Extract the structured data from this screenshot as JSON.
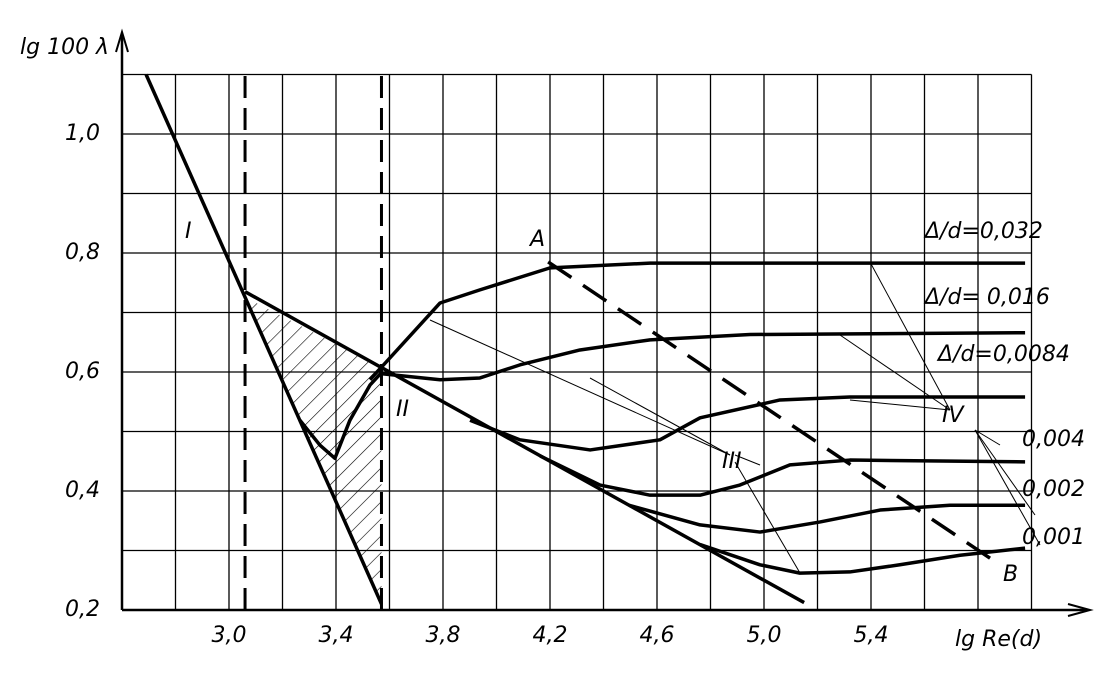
{
  "chart_data": {
    "type": "line",
    "y_label": "lg 100 λ",
    "x_label": "lg Re(d)",
    "xlim": [
      2.6,
      6.2
    ],
    "ylim": [
      0.2,
      1.1
    ],
    "xticks": [
      {
        "value": 3.0,
        "label": "3,0"
      },
      {
        "value": 3.4,
        "label": "3,4"
      },
      {
        "value": 3.8,
        "label": "3,8"
      },
      {
        "value": 4.2,
        "label": "4,2"
      },
      {
        "value": 4.6,
        "label": "4,6"
      },
      {
        "value": 5.0,
        "label": "5,0"
      },
      {
        "value": 5.4,
        "label": "5,4"
      }
    ],
    "yticks": [
      {
        "value": 0.2,
        "label": "0,2"
      },
      {
        "value": 0.4,
        "label": "0,4"
      },
      {
        "value": 0.6,
        "label": "0,6"
      },
      {
        "value": 0.8,
        "label": "0,8"
      },
      {
        "value": 1.0,
        "label": "1,0"
      }
    ],
    "xgrid": [
      2.8,
      3.0,
      3.2,
      3.4,
      3.6,
      3.8,
      4.0,
      4.2,
      4.4,
      4.6,
      4.8,
      5.0,
      5.2,
      5.4,
      5.6,
      5.8,
      6.0
    ],
    "ygrid": [
      0.3,
      0.4,
      0.5,
      0.6,
      0.7,
      0.8,
      0.9,
      1.0,
      1.1
    ],
    "grid": true,
    "vlines": [
      3.06,
      3.57
    ],
    "series": [
      {
        "name": "I",
        "color": "#000000",
        "x": [
          2.69,
          3.57
        ],
        "values": [
          1.1,
          0.21
        ]
      },
      {
        "name": "II",
        "color": "#000000",
        "x": [
          3.06,
          5.15
        ],
        "values": [
          0.735,
          0.2125
        ]
      },
      {
        "color": "#000000",
        "x": [
          3.265,
          3.34,
          3.396,
          3.452,
          3.527,
          3.572
        ],
        "values": [
          0.519,
          0.477,
          0.455,
          0.519,
          0.578,
          0.6
        ]
      },
      {
        "name": "Δ/d=0,032",
        "color": "#000000",
        "x": [
          3.527,
          3.789,
          3.938,
          4.2,
          4.574,
          5.976
        ],
        "values": [
          0.587,
          0.716,
          0.738,
          0.775,
          0.783,
          0.783
        ]
      },
      {
        "name": "Δ/d= 0,016",
        "color": "#000000",
        "x": [
          3.572,
          3.789,
          3.938,
          4.088,
          4.312,
          4.574,
          4.948,
          5.976
        ],
        "values": [
          0.597,
          0.587,
          0.59,
          0.612,
          0.637,
          0.654,
          0.663,
          0.666
        ]
      },
      {
        "name": "Δ/d=0,0084",
        "color": "#000000",
        "x": [
          3.901,
          4.088,
          4.35,
          4.611,
          4.761,
          5.06,
          5.321,
          5.976
        ],
        "values": [
          0.519,
          0.486,
          0.469,
          0.486,
          0.523,
          0.553,
          0.558,
          0.558
        ]
      },
      {
        "name": "0,004",
        "color": "#000000",
        "x": [
          4.163,
          4.387,
          4.574,
          4.761,
          4.91,
          5.097,
          5.321,
          5.976
        ],
        "values": [
          0.459,
          0.41,
          0.393,
          0.393,
          0.41,
          0.444,
          0.452,
          0.449
        ]
      },
      {
        "name": "0,002",
        "color": "#000000",
        "x": [
          4.496,
          4.761,
          4.985,
          5.21,
          5.434,
          5.695,
          5.976
        ],
        "values": [
          0.376,
          0.343,
          0.331,
          0.348,
          0.368,
          0.376,
          0.376
        ]
      },
      {
        "name": "0,001",
        "color": "#000000",
        "x": [
          4.761,
          4.985,
          5.134,
          5.321,
          5.508,
          5.733,
          5.976
        ],
        "values": [
          0.31,
          0.276,
          0.262,
          0.264,
          0.276,
          0.292,
          0.304
        ]
      },
      {
        "color": "#000000",
        "dash": true,
        "x": [
          4.193,
          5.882
        ],
        "values": [
          0.785,
          0.276
        ]
      }
    ],
    "annotations": [
      "A",
      "B",
      "III",
      "IV"
    ]
  }
}
